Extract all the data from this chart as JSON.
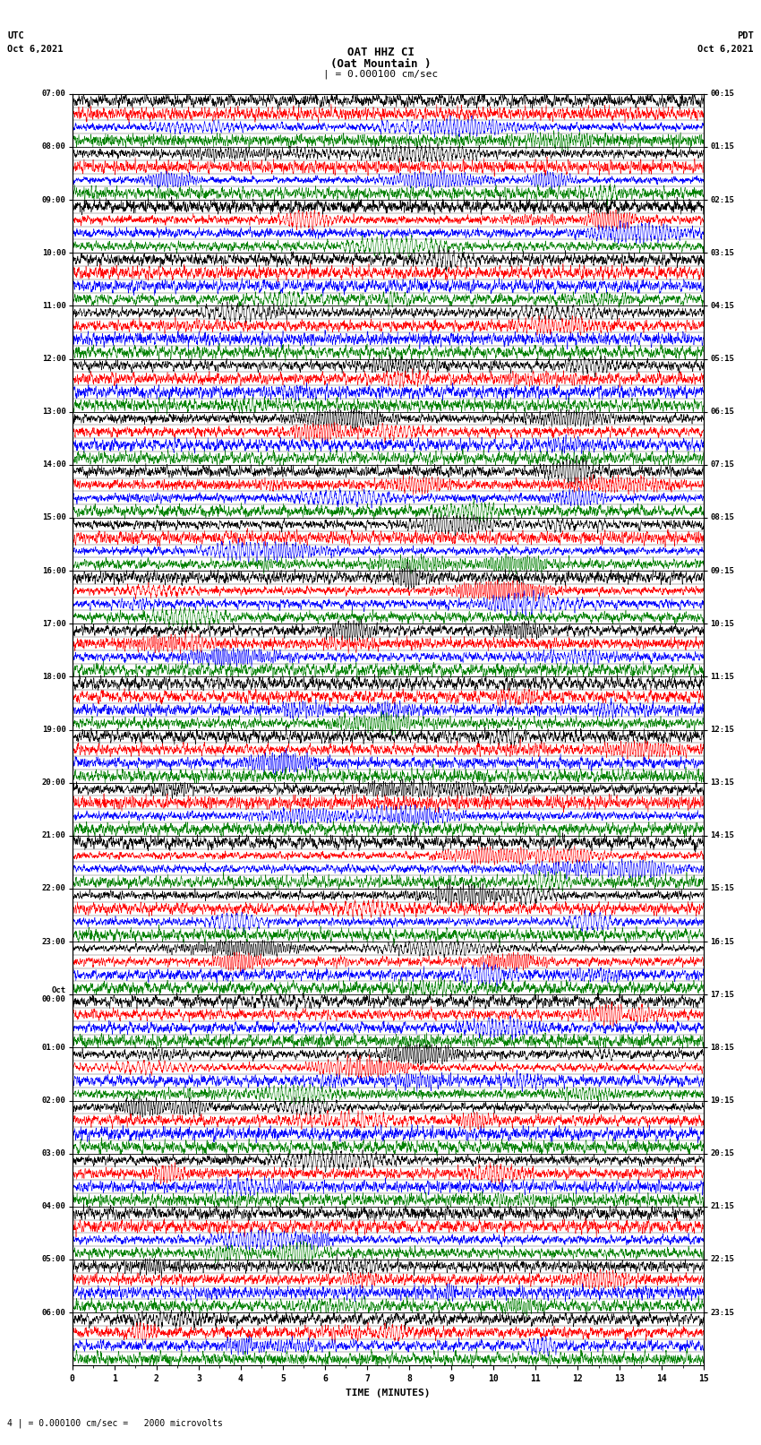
{
  "title_line1": "OAT HHZ CI",
  "title_line2": "(Oat Mountain )",
  "title_scale": "| = 0.000100 cm/sec",
  "left_header_line1": "UTC",
  "left_header_line2": "Oct 6,2021",
  "right_header_line1": "PDT",
  "right_header_line2": "Oct 6,2021",
  "footer": "4 | = 0.000100 cm/sec =   2000 microvolts",
  "xlabel": "TIME (MINUTES)",
  "utc_times": [
    "07:00",
    "08:00",
    "09:00",
    "10:00",
    "11:00",
    "12:00",
    "13:00",
    "14:00",
    "15:00",
    "16:00",
    "17:00",
    "18:00",
    "19:00",
    "20:00",
    "21:00",
    "22:00",
    "23:00",
    "Oct\n00:00",
    "01:00",
    "02:00",
    "03:00",
    "04:00",
    "05:00",
    "06:00"
  ],
  "pdt_times": [
    "00:15",
    "01:15",
    "02:15",
    "03:15",
    "04:15",
    "05:15",
    "06:15",
    "07:15",
    "08:15",
    "09:15",
    "10:15",
    "11:15",
    "12:15",
    "13:15",
    "14:15",
    "15:15",
    "16:15",
    "17:15",
    "18:15",
    "19:15",
    "20:15",
    "21:15",
    "22:15",
    "23:15"
  ],
  "n_rows": 24,
  "traces_per_row": 4,
  "minutes_per_trace": 15,
  "colors": [
    "black",
    "red",
    "blue",
    "green"
  ],
  "bg_color": "white",
  "noise_seed": 42,
  "fig_width": 8.5,
  "fig_height": 16.13,
  "dpi": 100
}
